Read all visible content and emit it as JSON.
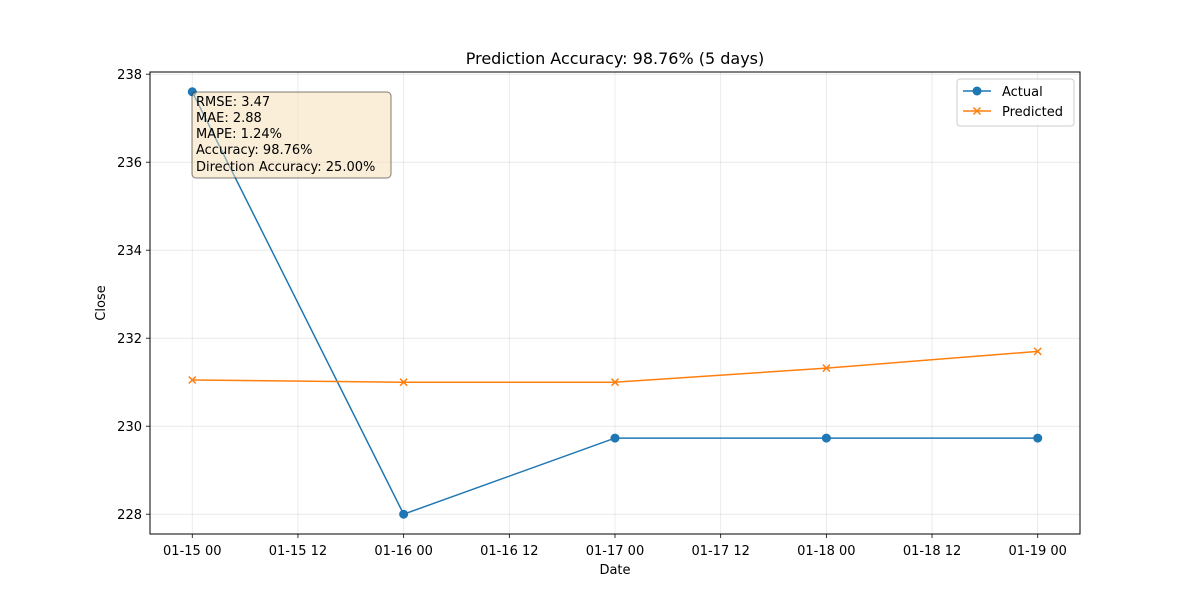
{
  "chart_data": {
    "type": "line",
    "title": "Prediction Accuracy: 98.76% (5 days)",
    "xlabel": "Date",
    "ylabel": "Close",
    "x": [
      "01-15 00",
      "01-16 00",
      "01-17 00",
      "01-18 00",
      "01-19 00"
    ],
    "x_numeric_days": [
      0,
      1,
      2,
      3,
      4
    ],
    "xticks": [
      "01-15 00",
      "01-15 12",
      "01-16 00",
      "01-16 12",
      "01-17 00",
      "01-17 12",
      "01-18 00",
      "01-18 12",
      "01-19 00"
    ],
    "yticks": [
      228,
      230,
      232,
      234,
      236,
      238
    ],
    "xlim": [
      -0.2,
      4.2
    ],
    "ylim": [
      227.55,
      238.05
    ],
    "grid": true,
    "legend_position": "top-right",
    "series": [
      {
        "name": "Actual",
        "marker": "circle",
        "color": "#1f77b4",
        "values": [
          237.6,
          228.0,
          229.73,
          229.73,
          229.73
        ]
      },
      {
        "name": "Predicted",
        "marker": "x",
        "color": "#ff7f0e",
        "values": [
          231.05,
          231.0,
          231.0,
          231.32,
          231.7
        ]
      }
    ],
    "annotation_lines": [
      "RMSE: 3.47",
      "MAE: 2.88",
      "MAPE: 1.24%",
      "Accuracy: 98.76%",
      "Direction Accuracy: 25.00%"
    ]
  }
}
